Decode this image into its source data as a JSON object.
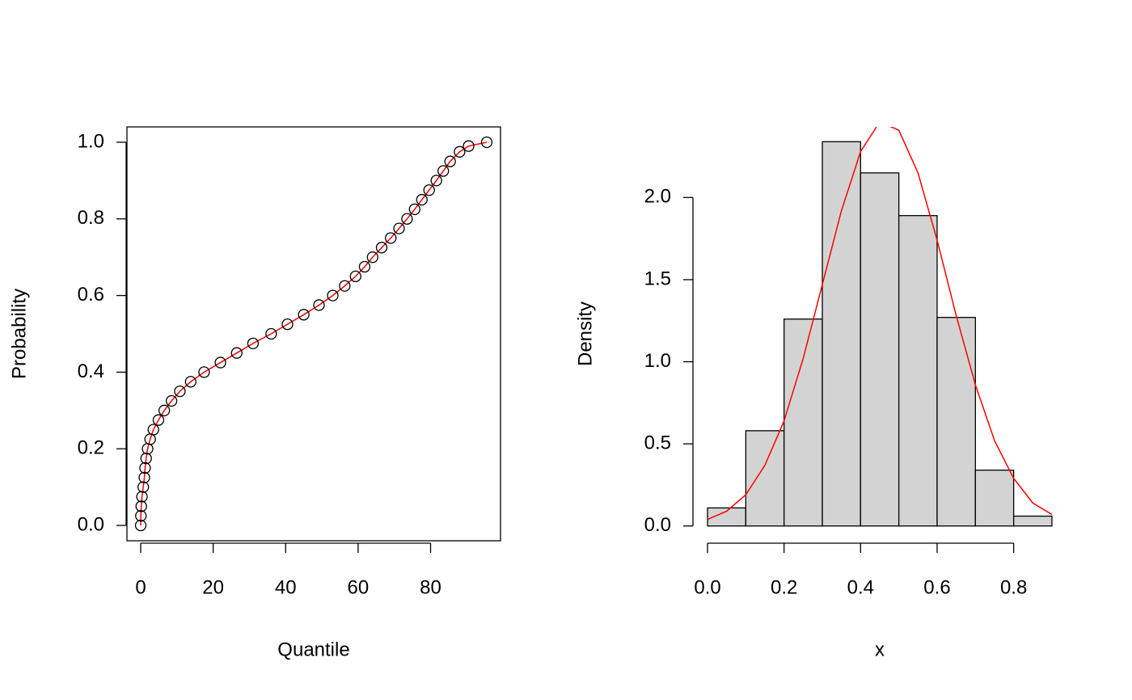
{
  "chart_data": [
    {
      "type": "scatter",
      "xlabel": "Quantile",
      "ylabel": "Probability",
      "x": [
        0,
        0.05,
        0.15,
        0.35,
        0.7,
        1.0,
        1.2,
        1.5,
        1.9,
        2.6,
        3.5,
        4.9,
        6.5,
        8.5,
        10.8,
        13.8,
        17.5,
        22,
        26.5,
        31,
        36,
        40.5,
        45,
        49.2,
        53,
        56.3,
        59.3,
        61.8,
        64,
        66.5,
        69,
        71.3,
        73.5,
        75.6,
        77.6,
        79.6,
        81.6,
        83.5,
        85.4,
        88,
        90.5,
        95.5
      ],
      "values": [
        0,
        0.025,
        0.05,
        0.075,
        0.1,
        0.125,
        0.15,
        0.175,
        0.2,
        0.225,
        0.25,
        0.275,
        0.3,
        0.325,
        0.35,
        0.375,
        0.4,
        0.425,
        0.45,
        0.475,
        0.5,
        0.525,
        0.55,
        0.575,
        0.6,
        0.625,
        0.65,
        0.675,
        0.7,
        0.725,
        0.75,
        0.775,
        0.8,
        0.825,
        0.85,
        0.875,
        0.9,
        0.925,
        0.95,
        0.975,
        0.99,
        1.0
      ],
      "marker_color": "#000000",
      "line_color": "#ff0000",
      "xlim": [
        -3.8,
        99.3
      ],
      "ylim": [
        -0.04,
        1.04
      ],
      "xticks": [
        0,
        20,
        40,
        60,
        80
      ],
      "yticks": [
        {
          "value": 0,
          "label": "0.0"
        },
        {
          "value": 0.2,
          "label": "0.2"
        },
        {
          "value": 0.4,
          "label": "0.4"
        },
        {
          "value": 0.6,
          "label": "0.6"
        },
        {
          "value": 0.8,
          "label": "0.8"
        },
        {
          "value": 1,
          "label": "1.0"
        }
      ]
    },
    {
      "type": "histogram",
      "xlabel": "x",
      "ylabel": "Density",
      "bins": [
        0,
        0.1,
        0.2,
        0.3,
        0.4,
        0.5,
        0.6,
        0.7,
        0.8,
        0.9
      ],
      "values": [
        0.11,
        0.58,
        1.26,
        2.34,
        2.15,
        1.89,
        1.27,
        0.34,
        0.06
      ],
      "color": "#d3d3d3",
      "curve": {
        "color": "#ff0000",
        "x": [
          0,
          0.05,
          0.1,
          0.15,
          0.2,
          0.25,
          0.3,
          0.35,
          0.4,
          0.45,
          0.5,
          0.55,
          0.6,
          0.65,
          0.7,
          0.75,
          0.8,
          0.85,
          0.9
        ],
        "values": [
          0.04,
          0.09,
          0.19,
          0.37,
          0.64,
          1.02,
          1.47,
          1.92,
          2.28,
          2.46,
          2.41,
          2.15,
          1.74,
          1.28,
          0.86,
          0.52,
          0.29,
          0.14,
          0.07
        ]
      },
      "xlim": [
        -0.036,
        0.936
      ],
      "ylim": [
        -0.09,
        2.43
      ],
      "xticks": [
        {
          "value": 0,
          "label": "0.0"
        },
        {
          "value": 0.2,
          "label": "0.2"
        },
        {
          "value": 0.4,
          "label": "0.4"
        },
        {
          "value": 0.6,
          "label": "0.6"
        },
        {
          "value": 0.8,
          "label": "0.8"
        }
      ],
      "yticks": [
        {
          "value": 0,
          "label": "0.0"
        },
        {
          "value": 0.5,
          "label": "0.5"
        },
        {
          "value": 1,
          "label": "1.0"
        },
        {
          "value": 1.5,
          "label": "1.5"
        },
        {
          "value": 2,
          "label": "2.0"
        }
      ]
    }
  ]
}
